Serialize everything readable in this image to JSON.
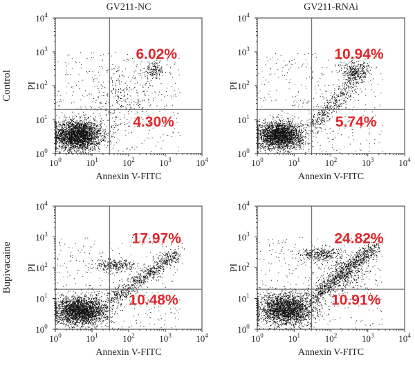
{
  "chart_data": [
    {
      "type": "scatter",
      "column_title": "GV211-NC",
      "row_label": "Control",
      "xlabel": "Annexin V-FITC",
      "ylabel": "PI",
      "x_scale": "log",
      "y_scale": "log",
      "xlim": [
        1,
        10000
      ],
      "ylim": [
        1,
        10000
      ],
      "x_ticks": [
        {
          "base": "10",
          "exp": "0"
        },
        {
          "base": "10",
          "exp": "1"
        },
        {
          "base": "10",
          "exp": "2"
        },
        {
          "base": "10",
          "exp": "3"
        },
        {
          "base": "10",
          "exp": "4"
        }
      ],
      "y_ticks": [
        {
          "base": "10",
          "exp": "0"
        },
        {
          "base": "10",
          "exp": "1"
        },
        {
          "base": "10",
          "exp": "2"
        },
        {
          "base": "10",
          "exp": "3"
        },
        {
          "base": "10",
          "exp": "4"
        }
      ],
      "gate": {
        "x": 30,
        "y": 20
      },
      "quadrant_labels": {
        "upper_right": "6.02%",
        "lower_right": "4.30%"
      },
      "populations": [
        {
          "cx": 4,
          "cy": 3.5,
          "sx": 0.32,
          "sy": 0.22,
          "n": 2600
        },
        {
          "cx": 500,
          "cy": 300,
          "sx": 0.18,
          "sy": 0.13,
          "n": 140
        },
        {
          "cx": 60,
          "cy": 40,
          "sx": 0.5,
          "sy": 0.45,
          "n": 260
        }
      ]
    },
    {
      "type": "scatter",
      "column_title": "GV211-RNAi",
      "row_label": "",
      "xlabel": "Annexin V-FITC",
      "ylabel": "PI",
      "x_scale": "log",
      "y_scale": "log",
      "xlim": [
        1,
        10000
      ],
      "ylim": [
        1,
        10000
      ],
      "x_ticks": [
        {
          "base": "10",
          "exp": "0"
        },
        {
          "base": "10",
          "exp": "1"
        },
        {
          "base": "10",
          "exp": "2"
        },
        {
          "base": "10",
          "exp": "3"
        },
        {
          "base": "10",
          "exp": "4"
        }
      ],
      "y_ticks": [
        {
          "base": "10",
          "exp": "0"
        },
        {
          "base": "10",
          "exp": "1"
        },
        {
          "base": "10",
          "exp": "2"
        },
        {
          "base": "10",
          "exp": "3"
        },
        {
          "base": "10",
          "exp": "4"
        }
      ],
      "gate": {
        "x": 30,
        "y": 20
      },
      "quadrant_labels": {
        "upper_right": "10.94%",
        "lower_right": "5.74%"
      },
      "populations": [
        {
          "cx": 4,
          "cy": 3.5,
          "sx": 0.3,
          "sy": 0.2,
          "n": 2400
        },
        {
          "cx": 400,
          "cy": 280,
          "sx": 0.2,
          "sy": 0.15,
          "n": 220
        },
        {
          "diag": true,
          "x0": 30,
          "y0": 6,
          "x1": 900,
          "y1": 350,
          "n": 500
        }
      ]
    },
    {
      "type": "scatter",
      "column_title": "",
      "row_label": "Bupivacaine",
      "xlabel": "Annexin V-FITC",
      "ylabel": "PI",
      "x_scale": "log",
      "y_scale": "log",
      "xlim": [
        1,
        10000
      ],
      "ylim": [
        1,
        10000
      ],
      "x_ticks": [
        {
          "base": "10",
          "exp": "0"
        },
        {
          "base": "10",
          "exp": "1"
        },
        {
          "base": "10",
          "exp": "2"
        },
        {
          "base": "10",
          "exp": "3"
        },
        {
          "base": "10",
          "exp": "4"
        }
      ],
      "y_ticks": [
        {
          "base": "10",
          "exp": "0"
        },
        {
          "base": "10",
          "exp": "1"
        },
        {
          "base": "10",
          "exp": "2"
        },
        {
          "base": "10",
          "exp": "3"
        },
        {
          "base": "10",
          "exp": "4"
        }
      ],
      "gate": {
        "x": 30,
        "y": 20
      },
      "quadrant_labels": {
        "upper_right": "17.97%",
        "lower_right": "10.48%"
      },
      "populations": [
        {
          "cx": 5,
          "cy": 4,
          "sx": 0.35,
          "sy": 0.22,
          "n": 2400
        },
        {
          "cx": 40,
          "cy": 120,
          "sx": 0.28,
          "sy": 0.1,
          "n": 260
        },
        {
          "diag": true,
          "x0": 30,
          "y0": 8,
          "x1": 2000,
          "y1": 300,
          "n": 700
        }
      ]
    },
    {
      "type": "scatter",
      "column_title": "",
      "row_label": "",
      "xlabel": "Annexin V-FITC",
      "ylabel": "PI",
      "x_scale": "log",
      "y_scale": "log",
      "xlim": [
        1,
        10000
      ],
      "ylim": [
        1,
        10000
      ],
      "x_ticks": [
        {
          "base": "10",
          "exp": "0"
        },
        {
          "base": "10",
          "exp": "1"
        },
        {
          "base": "10",
          "exp": "2"
        },
        {
          "base": "10",
          "exp": "3"
        },
        {
          "base": "10",
          "exp": "4"
        }
      ],
      "y_ticks": [
        {
          "base": "10",
          "exp": "0"
        },
        {
          "base": "10",
          "exp": "1"
        },
        {
          "base": "10",
          "exp": "2"
        },
        {
          "base": "10",
          "exp": "3"
        },
        {
          "base": "10",
          "exp": "4"
        }
      ],
      "gate": {
        "x": 30,
        "y": 20
      },
      "quadrant_labels": {
        "upper_right": "24.82%",
        "lower_right": "10.91%"
      },
      "populations": [
        {
          "cx": 6,
          "cy": 4.5,
          "sx": 0.38,
          "sy": 0.25,
          "n": 2300
        },
        {
          "cx": 50,
          "cy": 280,
          "sx": 0.3,
          "sy": 0.1,
          "n": 300
        },
        {
          "diag": true,
          "x0": 30,
          "y0": 10,
          "x1": 1500,
          "y1": 500,
          "n": 900
        },
        {
          "cx": 200,
          "cy": 60,
          "sx": 0.35,
          "sy": 0.3,
          "n": 300
        }
      ]
    }
  ]
}
